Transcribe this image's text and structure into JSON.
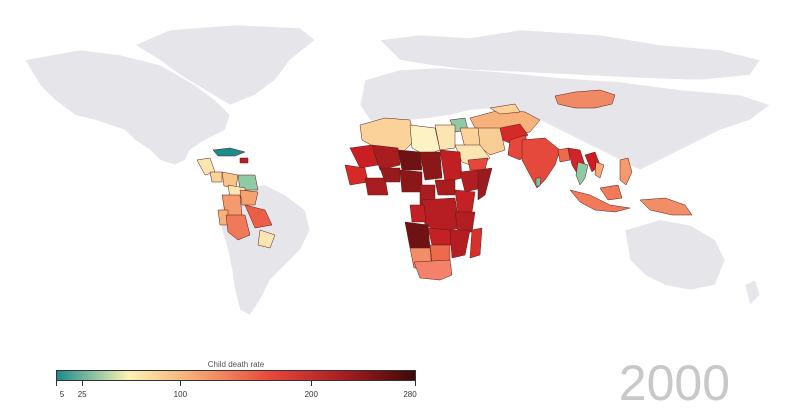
{
  "legend": {
    "title": "Child death rate",
    "min": 5,
    "max": 280,
    "ticks": [
      {
        "label": "5",
        "value": 5
      },
      {
        "label": "25",
        "value": 25
      },
      {
        "label": "100",
        "value": 100
      },
      {
        "label": "200",
        "value": 200
      },
      {
        "label": "280",
        "value": 280
      }
    ],
    "colors": [
      "#1a8c8c",
      "#fbf3b4",
      "#f5a26e",
      "#e8463a",
      "#a91d20",
      "#3d0808"
    ]
  },
  "year": "2000",
  "colors": {
    "background": "#ffffff",
    "no_data_land": "#e6e6ea",
    "country_border": "#5a1a14"
  }
}
